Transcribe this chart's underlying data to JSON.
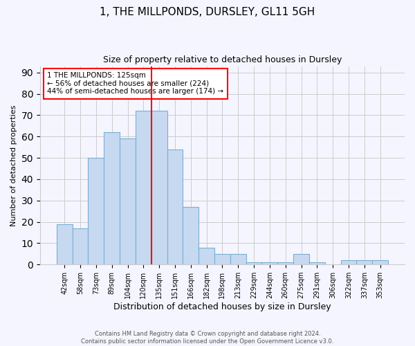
{
  "title1": "1, THE MILLPONDS, DURSLEY, GL11 5GH",
  "title2": "Size of property relative to detached houses in Dursley",
  "xlabel": "Distribution of detached houses by size in Dursley",
  "ylabel": "Number of detached properties",
  "categories": [
    "42sqm",
    "58sqm",
    "73sqm",
    "89sqm",
    "104sqm",
    "120sqm",
    "135sqm",
    "151sqm",
    "166sqm",
    "182sqm",
    "198sqm",
    "213sqm",
    "229sqm",
    "244sqm",
    "260sqm",
    "275sqm",
    "291sqm",
    "306sqm",
    "322sqm",
    "337sqm",
    "353sqm"
  ],
  "values": [
    19,
    17,
    50,
    62,
    59,
    72,
    72,
    54,
    27,
    8,
    5,
    5,
    1,
    1,
    1,
    5,
    1,
    0,
    2,
    2,
    2
  ],
  "bar_color": "#c6d9f0",
  "bar_edge_color": "#7aafd4",
  "vline_x_index": 5.5,
  "vline_color": "red",
  "annotation_text": "1 THE MILLPONDS: 125sqm\n← 56% of detached houses are smaller (224)\n44% of semi-detached houses are larger (174) →",
  "annotation_bbox_color": "white",
  "annotation_bbox_edge_color": "red",
  "ylim": [
    0,
    93
  ],
  "yticks": [
    0,
    10,
    20,
    30,
    40,
    50,
    60,
    70,
    80,
    90
  ],
  "footer": "Contains HM Land Registry data © Crown copyright and database right 2024.\nContains public sector information licensed under the Open Government Licence v3.0.",
  "bg_color": "#f5f5ff"
}
